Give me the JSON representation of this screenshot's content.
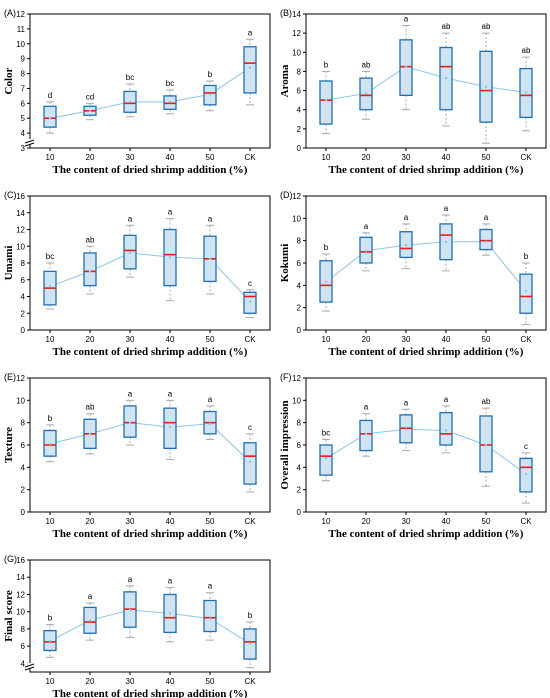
{
  "figure": {
    "colors": {
      "box_fill": "#cfe3f1",
      "box_edge": "#1f6fb4",
      "median": "#e0201b",
      "mean_line": "#8fc4e6",
      "whisker": "#a8a8a8",
      "axis": "#000000"
    }
  },
  "chart_data": [
    {
      "type": "box",
      "panel_label": "(A)",
      "ylabel": "Color",
      "xlabel": "The content of dried shrimp addition (%)",
      "categories": [
        "10",
        "20",
        "30",
        "40",
        "50",
        "CK"
      ],
      "ylim": [
        3,
        12
      ],
      "yticks": [
        3,
        4,
        5,
        6,
        7,
        8,
        9,
        10,
        11,
        12
      ],
      "axis_break": true,
      "boxes": [
        {
          "min": 4.0,
          "q1": 4.4,
          "median": 5.0,
          "q3": 5.8,
          "max": 6.1,
          "mean": 5.0
        },
        {
          "min": 4.9,
          "q1": 5.2,
          "median": 5.5,
          "q3": 5.8,
          "max": 6.0,
          "mean": 5.5
        },
        {
          "min": 5.1,
          "q1": 5.4,
          "median": 6.0,
          "q3": 6.8,
          "max": 7.3,
          "mean": 6.1
        },
        {
          "min": 5.3,
          "q1": 5.6,
          "median": 6.0,
          "q3": 6.5,
          "max": 6.9,
          "mean": 6.1
        },
        {
          "min": 5.5,
          "q1": 5.9,
          "median": 6.7,
          "q3": 7.2,
          "max": 7.5,
          "mean": 6.6
        },
        {
          "min": 5.9,
          "q1": 6.7,
          "median": 8.7,
          "q3": 9.8,
          "max": 10.3,
          "mean": 8.4
        }
      ],
      "significance": [
        "d",
        "cd",
        "bc",
        "bc",
        "b",
        "a"
      ]
    },
    {
      "type": "box",
      "panel_label": "(B)",
      "ylabel": "Aroma",
      "xlabel": "The content of dried shrimp addition (%)",
      "categories": [
        "10",
        "20",
        "30",
        "40",
        "50",
        "CK"
      ],
      "ylim": [
        0,
        14
      ],
      "yticks": [
        0,
        2,
        4,
        6,
        8,
        10,
        12,
        14
      ],
      "axis_break": false,
      "boxes": [
        {
          "min": 1.5,
          "q1": 2.5,
          "median": 5.0,
          "q3": 7.0,
          "max": 8.0,
          "mean": 5.0
        },
        {
          "min": 3.0,
          "q1": 4.0,
          "median": 5.5,
          "q3": 7.3,
          "max": 8.0,
          "mean": 5.7
        },
        {
          "min": 4.0,
          "q1": 5.5,
          "median": 8.5,
          "q3": 11.3,
          "max": 12.8,
          "mean": 8.5
        },
        {
          "min": 2.3,
          "q1": 4.0,
          "median": 8.5,
          "q3": 10.5,
          "max": 12.0,
          "mean": 7.3
        },
        {
          "min": 0.5,
          "q1": 2.7,
          "median": 6.0,
          "q3": 10.1,
          "max": 12.0,
          "mean": 6.4
        },
        {
          "min": 1.8,
          "q1": 3.2,
          "median": 5.5,
          "q3": 8.3,
          "max": 9.5,
          "mean": 5.8
        }
      ],
      "significance": [
        "b",
        "ab",
        "a",
        "ab",
        "ab",
        "ab"
      ]
    },
    {
      "type": "box",
      "panel_label": "(C)",
      "ylabel": "Umami",
      "xlabel": "The content of dried shrimp addition (%)",
      "categories": [
        "10",
        "20",
        "30",
        "40",
        "50",
        "CK"
      ],
      "ylim": [
        0,
        16
      ],
      "yticks": [
        0,
        2,
        4,
        6,
        8,
        10,
        12,
        14,
        16
      ],
      "axis_break": false,
      "boxes": [
        {
          "min": 2.5,
          "q1": 3.0,
          "median": 5.0,
          "q3": 7.0,
          "max": 8.0,
          "mean": 5.2
        },
        {
          "min": 4.3,
          "q1": 5.3,
          "median": 7.0,
          "q3": 9.2,
          "max": 10.0,
          "mean": 7.0
        },
        {
          "min": 6.3,
          "q1": 7.3,
          "median": 9.5,
          "q3": 11.3,
          "max": 12.5,
          "mean": 9.2
        },
        {
          "min": 3.5,
          "q1": 5.3,
          "median": 9.0,
          "q3": 12.0,
          "max": 13.3,
          "mean": 8.7
        },
        {
          "min": 4.3,
          "q1": 5.8,
          "median": 8.5,
          "q3": 11.2,
          "max": 12.5,
          "mean": 8.5
        },
        {
          "min": 1.5,
          "q1": 2.0,
          "median": 4.0,
          "q3": 4.5,
          "max": 4.8,
          "mean": 3.4
        }
      ],
      "significance": [
        "bc",
        "ab",
        "a",
        "a",
        "a",
        "c"
      ]
    },
    {
      "type": "box",
      "panel_label": "(D)",
      "ylabel": "Kokumi",
      "xlabel": "The content of dried shrimp addition (%)",
      "categories": [
        "10",
        "20",
        "30",
        "40",
        "50",
        "CK"
      ],
      "ylim": [
        0,
        12
      ],
      "yticks": [
        0,
        2,
        4,
        6,
        8,
        10,
        12
      ],
      "axis_break": false,
      "boxes": [
        {
          "min": 1.7,
          "q1": 2.5,
          "median": 4.0,
          "q3": 6.2,
          "max": 6.8,
          "mean": 4.3
        },
        {
          "min": 5.3,
          "q1": 6.0,
          "median": 7.0,
          "q3": 8.3,
          "max": 8.7,
          "mean": 7.1
        },
        {
          "min": 5.5,
          "q1": 6.5,
          "median": 7.3,
          "q3": 8.8,
          "max": 9.5,
          "mean": 7.6
        },
        {
          "min": 5.3,
          "q1": 6.3,
          "median": 8.5,
          "q3": 9.5,
          "max": 10.3,
          "mean": 7.9
        },
        {
          "min": 6.7,
          "q1": 7.2,
          "median": 8.0,
          "q3": 9.0,
          "max": 9.5,
          "mean": 7.9
        },
        {
          "min": 0.5,
          "q1": 1.5,
          "median": 3.0,
          "q3": 5.0,
          "max": 6.0,
          "mean": 3.5
        }
      ],
      "significance": [
        "b",
        "a",
        "a",
        "a",
        "a",
        "b"
      ]
    },
    {
      "type": "box",
      "panel_label": "(E)",
      "ylabel": "Texture",
      "xlabel": "The content of dried shrimp addition (%)",
      "categories": [
        "10",
        "20",
        "30",
        "40",
        "50",
        "CK"
      ],
      "ylim": [
        0,
        12
      ],
      "yticks": [
        0,
        2,
        4,
        6,
        8,
        10,
        12
      ],
      "axis_break": false,
      "boxes": [
        {
          "min": 4.5,
          "q1": 5.0,
          "median": 6.0,
          "q3": 7.3,
          "max": 7.8,
          "mean": 6.1
        },
        {
          "min": 5.2,
          "q1": 5.7,
          "median": 7.0,
          "q3": 8.3,
          "max": 8.8,
          "mean": 7.0
        },
        {
          "min": 6.0,
          "q1": 6.7,
          "median": 8.0,
          "q3": 9.5,
          "max": 10.0,
          "mean": 8.0
        },
        {
          "min": 4.7,
          "q1": 5.7,
          "median": 8.0,
          "q3": 9.3,
          "max": 10.0,
          "mean": 7.6
        },
        {
          "min": 6.5,
          "q1": 7.0,
          "median": 8.0,
          "q3": 9.0,
          "max": 9.5,
          "mean": 7.9
        },
        {
          "min": 1.8,
          "q1": 2.5,
          "median": 5.0,
          "q3": 6.2,
          "max": 7.0,
          "mean": 4.5
        }
      ],
      "significance": [
        "b",
        "ab",
        "a",
        "a",
        "a",
        "c"
      ]
    },
    {
      "type": "box",
      "panel_label": "(F)",
      "ylabel": "Overall impression",
      "xlabel": "The content of dried shrimp addition (%)",
      "categories": [
        "10",
        "20",
        "30",
        "40",
        "50",
        "CK"
      ],
      "ylim": [
        0,
        12
      ],
      "yticks": [
        0,
        2,
        4,
        6,
        8,
        10,
        12
      ],
      "axis_break": false,
      "boxes": [
        {
          "min": 2.8,
          "q1": 3.3,
          "median": 5.0,
          "q3": 6.0,
          "max": 6.5,
          "mean": 4.8
        },
        {
          "min": 5.0,
          "q1": 5.5,
          "median": 7.0,
          "q3": 8.2,
          "max": 8.8,
          "mean": 7.0
        },
        {
          "min": 5.5,
          "q1": 6.2,
          "median": 7.5,
          "q3": 8.7,
          "max": 9.2,
          "mean": 7.4
        },
        {
          "min": 5.3,
          "q1": 6.0,
          "median": 7.0,
          "q3": 8.9,
          "max": 9.5,
          "mean": 7.3
        },
        {
          "min": 2.3,
          "q1": 3.6,
          "median": 6.0,
          "q3": 8.6,
          "max": 9.3,
          "mean": 6.0
        },
        {
          "min": 0.8,
          "q1": 1.8,
          "median": 4.0,
          "q3": 4.8,
          "max": 5.3,
          "mean": 3.4
        }
      ],
      "significance": [
        "bc",
        "a",
        "a",
        "a",
        "ab",
        "c"
      ]
    },
    {
      "type": "box",
      "panel_label": "(G)",
      "ylabel": "Final score",
      "xlabel": "The content of dried shrimp addition (%)",
      "categories": [
        "10",
        "20",
        "30",
        "40",
        "50",
        "CK"
      ],
      "ylim": [
        3,
        16
      ],
      "yticks": [
        4,
        6,
        8,
        10,
        12,
        14,
        16
      ],
      "axis_break": true,
      "boxes": [
        {
          "min": 4.7,
          "q1": 5.5,
          "median": 6.5,
          "q3": 7.8,
          "max": 8.5,
          "mean": 6.6
        },
        {
          "min": 6.7,
          "q1": 7.5,
          "median": 8.8,
          "q3": 10.5,
          "max": 11.0,
          "mean": 9.0
        },
        {
          "min": 7.0,
          "q1": 8.2,
          "median": 10.3,
          "q3": 12.3,
          "max": 13.0,
          "mean": 10.2
        },
        {
          "min": 6.5,
          "q1": 7.6,
          "median": 9.3,
          "q3": 12.0,
          "max": 12.8,
          "mean": 9.8
        },
        {
          "min": 6.7,
          "q1": 7.7,
          "median": 9.3,
          "q3": 11.3,
          "max": 12.2,
          "mean": 9.2
        },
        {
          "min": 3.5,
          "q1": 4.5,
          "median": 6.5,
          "q3": 8.0,
          "max": 8.8,
          "mean": 6.3
        }
      ],
      "significance": [
        "b",
        "a",
        "a",
        "a",
        "a",
        "b"
      ]
    }
  ]
}
